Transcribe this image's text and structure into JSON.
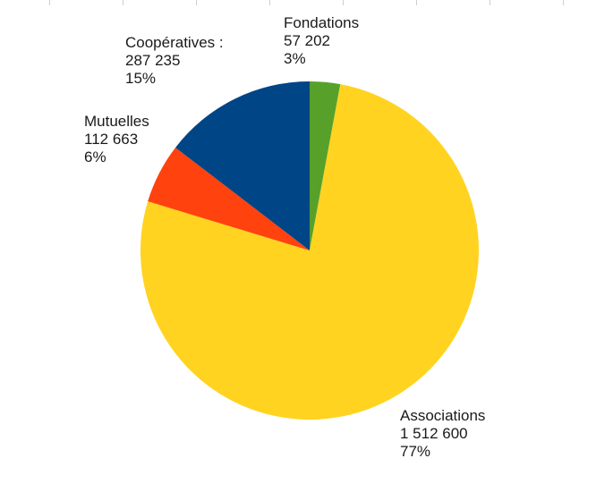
{
  "chart_data": {
    "type": "pie",
    "title": "",
    "start_angle_deg": 0,
    "direction": "clockwise",
    "slices": [
      {
        "name": "Fondations",
        "value": 57202,
        "value_label": "57 202",
        "percent_label": "3%",
        "color": "#57a12b"
      },
      {
        "name": "Associations",
        "value": 1512600,
        "value_label": "1 512 600",
        "percent_label": "77%",
        "color": "#ffd320"
      },
      {
        "name": "Mutuelles",
        "value": 112663,
        "value_label": "112 663",
        "percent_label": "6%",
        "color": "#ff420e"
      },
      {
        "name": "Coopératives :",
        "value": 287235,
        "value_label": "287 235",
        "percent_label": "15%",
        "color": "#004586"
      }
    ]
  }
}
